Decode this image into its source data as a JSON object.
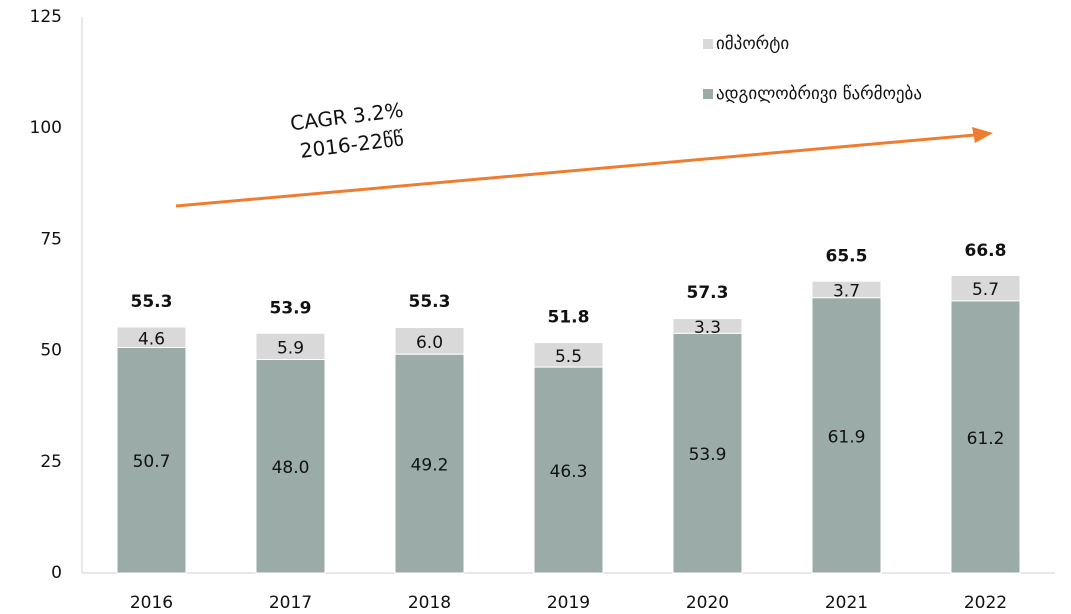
{
  "chart_data": {
    "type": "stacked_bar",
    "categories": [
      "2016",
      "2017",
      "2018",
      "2019",
      "2020",
      "2021",
      "2022"
    ],
    "series": [
      {
        "name": "ადგილობრივი წარმოება",
        "color": "#9aaba8",
        "values": [
          50.7,
          48.0,
          49.2,
          46.3,
          53.9,
          61.9,
          61.2
        ],
        "value_labels": [
          "50.7",
          "48.0",
          "49.2",
          "46.3",
          "53.9",
          "61.9",
          "61.2"
        ]
      },
      {
        "name": "იმპორტი",
        "color": "#d9d9d9",
        "values": [
          4.6,
          5.9,
          6.0,
          5.5,
          3.3,
          3.7,
          5.7
        ],
        "value_labels": [
          "4.6",
          "5.9",
          "6.0",
          "5.5",
          "3.3",
          "3.7",
          "5.7"
        ]
      }
    ],
    "totals": [
      55.3,
      53.9,
      55.3,
      51.8,
      57.3,
      65.5,
      66.8
    ],
    "ylim": [
      0,
      125
    ],
    "yticks": [
      0,
      25,
      50,
      75,
      100,
      125
    ],
    "grid": false,
    "legend": "top-right",
    "annotations": [
      "CAGR 3.2%",
      "2016-22წწ"
    ]
  }
}
